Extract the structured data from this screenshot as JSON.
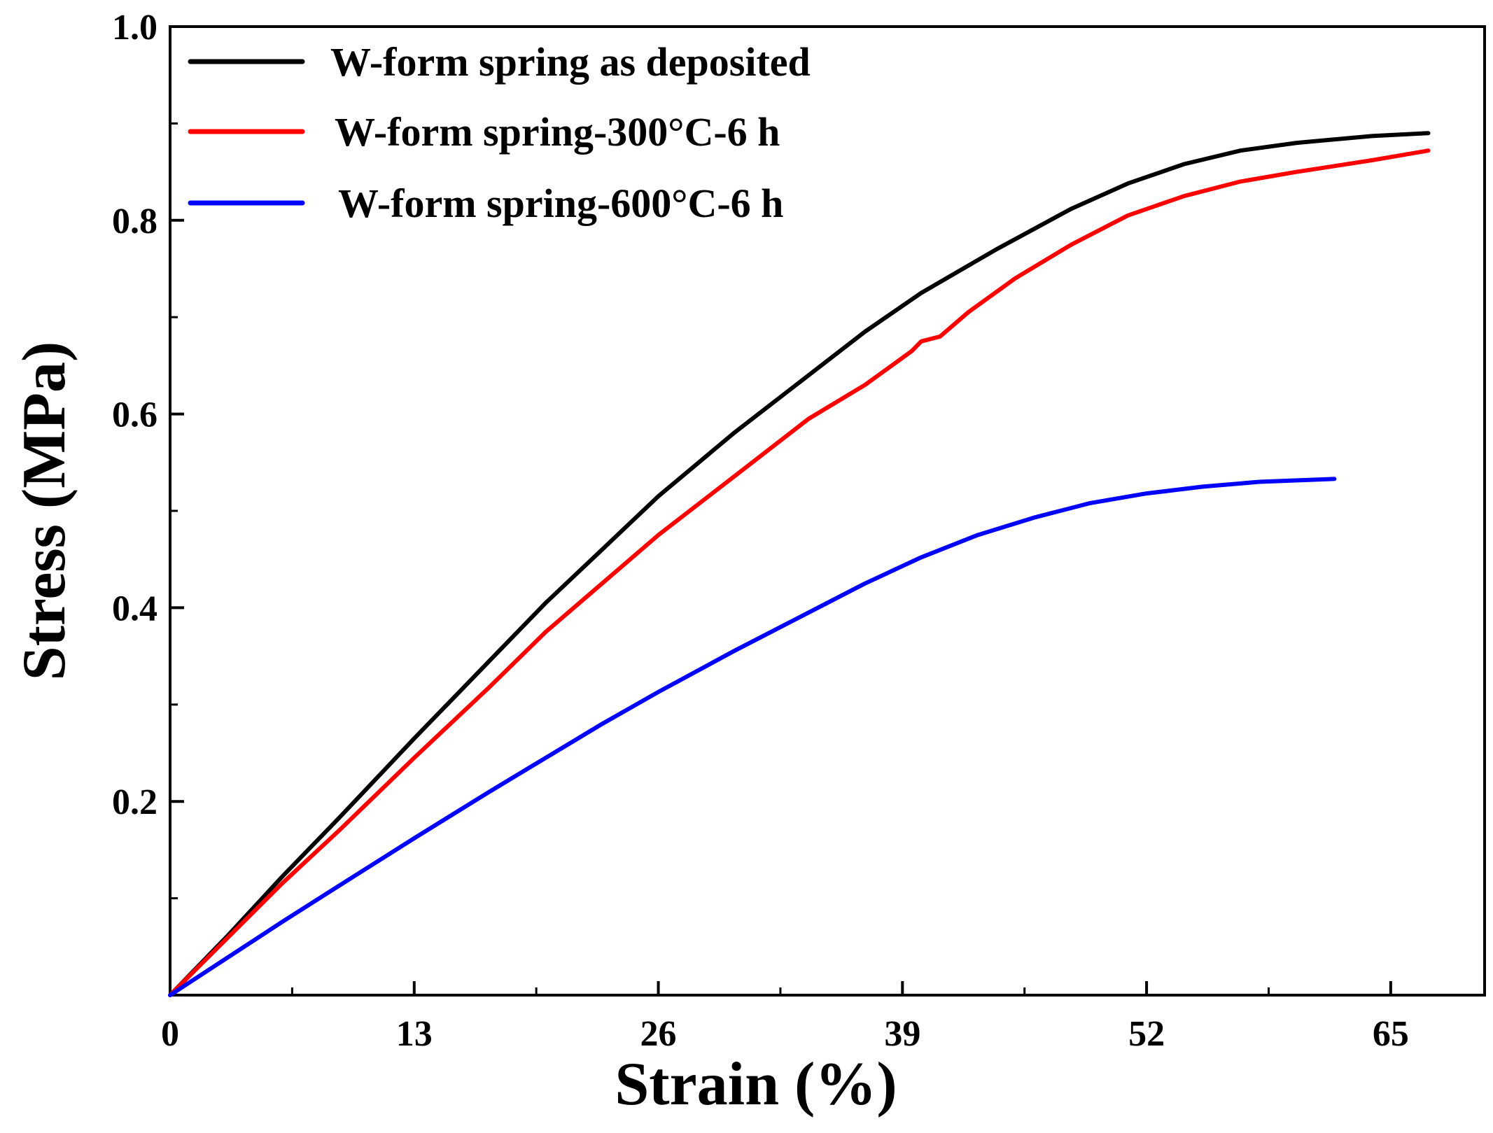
{
  "chart_data": {
    "type": "line",
    "title": "",
    "xlabel": "Strain (%)",
    "ylabel": "Stress (MPa)",
    "xlim": [
      0,
      70
    ],
    "ylim": [
      0,
      1.0
    ],
    "xticks": [
      0,
      13,
      26,
      39,
      52,
      65
    ],
    "yticks": [
      0.2,
      0.4,
      0.6,
      0.8,
      1.0
    ],
    "grid": false,
    "legend_position": "top-left",
    "series": [
      {
        "name": "W-form spring as deposited",
        "color": "#000000",
        "x": [
          0,
          3,
          6,
          9,
          13,
          17,
          20,
          23,
          26,
          30,
          34,
          37,
          40,
          44,
          48,
          51,
          54,
          57,
          60,
          64,
          67
        ],
        "y": [
          0,
          0.06,
          0.123,
          0.183,
          0.265,
          0.345,
          0.405,
          0.46,
          0.515,
          0.58,
          0.64,
          0.685,
          0.725,
          0.77,
          0.812,
          0.838,
          0.858,
          0.872,
          0.88,
          0.887,
          0.89
        ]
      },
      {
        "name": "W-form spring-300°C-6 h",
        "color": "#ff0000",
        "x": [
          0,
          3,
          6,
          9,
          13,
          17,
          20,
          23,
          26,
          30,
          34,
          37,
          39.5,
          40,
          41,
          42.5,
          45,
          48,
          51,
          54,
          57,
          60,
          64,
          67
        ],
        "y": [
          0,
          0.058,
          0.116,
          0.17,
          0.245,
          0.318,
          0.375,
          0.425,
          0.475,
          0.535,
          0.595,
          0.63,
          0.665,
          0.675,
          0.68,
          0.705,
          0.74,
          0.775,
          0.805,
          0.825,
          0.84,
          0.85,
          0.862,
          0.872
        ]
      },
      {
        "name": "W-form spring-600°C-6 h",
        "color": "#0000ff",
        "x": [
          0,
          3,
          6,
          9,
          13,
          17,
          20,
          23,
          26,
          30,
          34,
          37,
          40,
          43,
          46,
          49,
          52,
          55,
          58,
          62
        ],
        "y": [
          0,
          0.038,
          0.076,
          0.113,
          0.162,
          0.21,
          0.245,
          0.28,
          0.313,
          0.355,
          0.395,
          0.425,
          0.452,
          0.475,
          0.493,
          0.508,
          0.518,
          0.525,
          0.53,
          0.533
        ]
      }
    ]
  }
}
